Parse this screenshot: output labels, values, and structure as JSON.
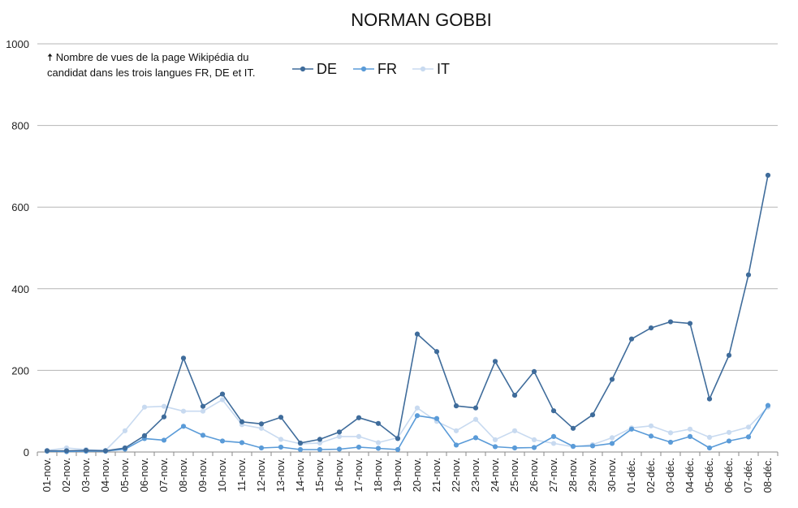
{
  "chart_data": {
    "type": "line",
    "title": "NORMAN GOBBI",
    "annotation": {
      "arrow": "🠅",
      "line1": "Nombre de vues de la page Wikipédia du",
      "line2": "candidat dans les trois langues FR, DE et IT."
    },
    "ylim": [
      0,
      1000
    ],
    "yticks": [
      "0",
      "200",
      "400",
      "600",
      "800",
      "1000"
    ],
    "grid": "horizontal",
    "legend_position": "top",
    "categories": [
      "01-nov.",
      "02-nov.",
      "03-nov.",
      "04-nov.",
      "05-nov.",
      "06-nov.",
      "07-nov.",
      "08-nov.",
      "09-nov.",
      "10-nov.",
      "11-nov.",
      "12-nov.",
      "13-nov.",
      "14-nov.",
      "15-nov.",
      "16-nov.",
      "17-nov.",
      "18-nov.",
      "19-nov.",
      "20-nov.",
      "21-nov.",
      "22-nov.",
      "23-nov.",
      "24-nov.",
      "25-nov.",
      "26-nov.",
      "27-nov.",
      "28-nov.",
      "29-nov.",
      "30-nov.",
      "01-déc.",
      "02-déc.",
      "03-déc.",
      "04-déc.",
      "05-déc.",
      "06-déc.",
      "07-déc.",
      "08-déc."
    ],
    "series": [
      {
        "name": "DE",
        "color": "#3f6c9b",
        "values": [
          3,
          3,
          4,
          3,
          10,
          40,
          86,
          230,
          112,
          142,
          74,
          69,
          85,
          22,
          31,
          49,
          84,
          70,
          33,
          289,
          246,
          113,
          108,
          222,
          139,
          197,
          101,
          58,
          91,
          178,
          277,
          304,
          319,
          315,
          130,
          237,
          434,
          678
        ]
      },
      {
        "name": "FR",
        "color": "#5a9bd8",
        "values": [
          2,
          1,
          2,
          2,
          7,
          33,
          29,
          63,
          41,
          27,
          23,
          10,
          12,
          6,
          6,
          7,
          12,
          9,
          6,
          89,
          82,
          17,
          35,
          13,
          10,
          11,
          38,
          14,
          15,
          21,
          56,
          39,
          24,
          38,
          10,
          27,
          37,
          114
        ]
      },
      {
        "name": "IT",
        "color": "#c8daf0",
        "values": [
          4,
          10,
          6,
          4,
          52,
          110,
          112,
          100,
          100,
          128,
          67,
          58,
          31,
          20,
          22,
          38,
          38,
          23,
          35,
          108,
          75,
          52,
          80,
          30,
          52,
          30,
          21,
          13,
          18,
          35,
          59,
          64,
          47,
          56,
          36,
          48,
          61,
          110
        ]
      }
    ]
  }
}
